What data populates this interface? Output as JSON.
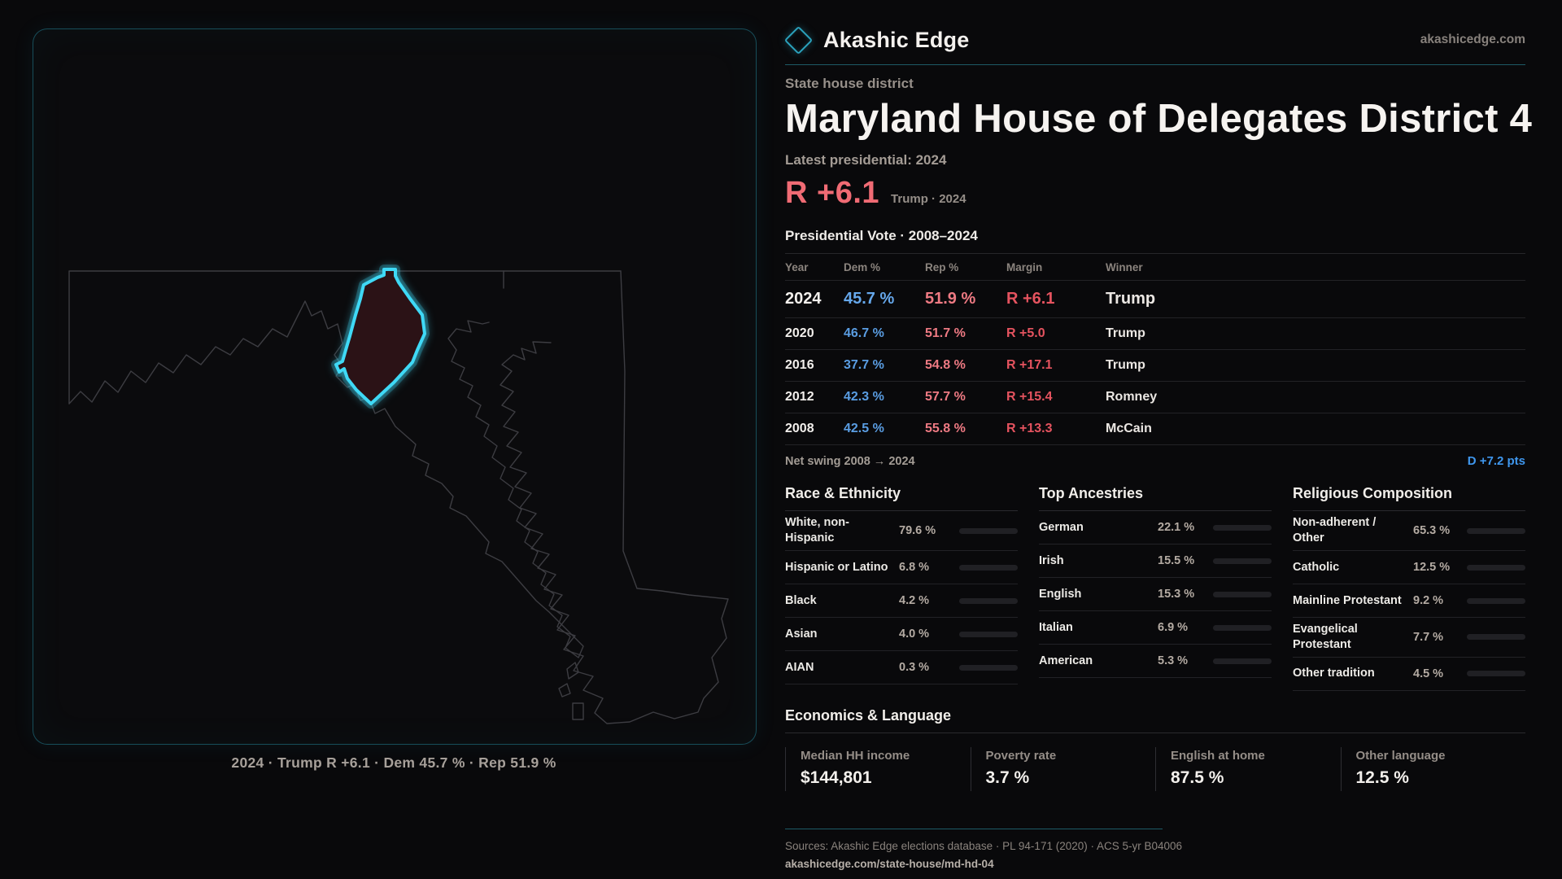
{
  "brand": {
    "name": "Akashic Edge",
    "domain": "akashicedge.com",
    "logo_icon": "diamond-outline"
  },
  "map_panel": {
    "caption": "2024 · Trump R +6.1 · Dem 45.7 % · Rep 51.9 %"
  },
  "header": {
    "kicker": "State house district",
    "title": "Maryland House of Delegates District 4",
    "latest_label": "Latest presidential: 2024",
    "hero_margin": "R +6.1",
    "hero_context": "Trump · 2024"
  },
  "vote_table": {
    "title": "Presidential Vote · 2008–2024",
    "columns": [
      "Year",
      "Dem %",
      "Rep %",
      "Margin",
      "Winner"
    ],
    "rows": [
      {
        "year": "2024",
        "dem": "45.7 %",
        "rep": "51.9 %",
        "margin": "R +6.1",
        "winner": "Trump"
      },
      {
        "year": "2020",
        "dem": "46.7 %",
        "rep": "51.7 %",
        "margin": "R +5.0",
        "winner": "Trump"
      },
      {
        "year": "2016",
        "dem": "37.7 %",
        "rep": "54.8 %",
        "margin": "R +17.1",
        "winner": "Trump"
      },
      {
        "year": "2012",
        "dem": "42.3 %",
        "rep": "57.7 %",
        "margin": "R +15.4",
        "winner": "Romney"
      },
      {
        "year": "2008",
        "dem": "42.5 %",
        "rep": "55.8 %",
        "margin": "R +13.3",
        "winner": "McCain"
      }
    ],
    "net_swing_label": "Net swing 2008 → 2024",
    "net_swing_value": "D +7.2 pts"
  },
  "demographics": {
    "race": {
      "title": "Race & Ethnicity",
      "rows": [
        {
          "label": "White, non-Hispanic",
          "value": "79.6 %",
          "pct": 79.6,
          "color": "#8d9fba"
        },
        {
          "label": "Hispanic or Latino",
          "value": "6.8 %",
          "pct": 6.8,
          "color": "#e0a344"
        },
        {
          "label": "Black",
          "value": "4.2 %",
          "pct": 4.2,
          "color": "#8574e8"
        },
        {
          "label": "Asian",
          "value": "4.0 %",
          "pct": 4.0,
          "color": "#2fc592"
        },
        {
          "label": "AIAN",
          "value": "0.3 %",
          "pct": 0.3,
          "color": "#565b64"
        }
      ]
    },
    "ancestry": {
      "title": "Top Ancestries",
      "rows": [
        {
          "label": "German",
          "value": "22.1 %",
          "pct": 22.1,
          "color": "#7e94ae"
        },
        {
          "label": "Irish",
          "value": "15.5 %",
          "pct": 15.5,
          "color": "#7e94ae"
        },
        {
          "label": "English",
          "value": "15.3 %",
          "pct": 15.3,
          "color": "#7e94ae"
        },
        {
          "label": "Italian",
          "value": "6.9 %",
          "pct": 6.9,
          "color": "#7e94ae"
        },
        {
          "label": "American",
          "value": "5.3 %",
          "pct": 5.3,
          "color": "#7e94ae"
        }
      ]
    },
    "religion": {
      "title": "Religious Composition",
      "rows": [
        {
          "label": "Non-adherent / Other",
          "value": "65.3 %",
          "pct": 65.3,
          "color": "#7e8ba3"
        },
        {
          "label": "Catholic",
          "value": "12.5 %",
          "pct": 12.5,
          "color": "#e3b44a"
        },
        {
          "label": "Mainline Protestant",
          "value": "9.2 %",
          "pct": 9.2,
          "color": "#4b93e6"
        },
        {
          "label": "Evangelical Protestant",
          "value": "7.7 %",
          "pct": 7.7,
          "color": "#e0636e"
        },
        {
          "label": "Other tradition",
          "value": "4.5 %",
          "pct": 4.5,
          "color": "#8f959e"
        }
      ]
    }
  },
  "economics": {
    "title": "Economics & Language",
    "stats": [
      {
        "label": "Median HH income",
        "value": "$144,801"
      },
      {
        "label": "Poverty rate",
        "value": "3.7 %"
      },
      {
        "label": "English at home",
        "value": "87.5 %"
      },
      {
        "label": "Other language",
        "value": "12.5 %"
      }
    ]
  },
  "footer": {
    "sources": "Sources: Akashic Edge elections database · PL 94-171 (2020) · ACS 5-yr B04006",
    "slug": "akashicedge.com/state-house/md-hd-04"
  },
  "colors": {
    "accent_cyan": "#3fd9f6",
    "dem_blue": "#5a9de2",
    "rep_red": "#ee7a83",
    "margin_red": "#e5535f",
    "swing_blue": "#3f97ee",
    "hero_red": "#f06b74"
  }
}
